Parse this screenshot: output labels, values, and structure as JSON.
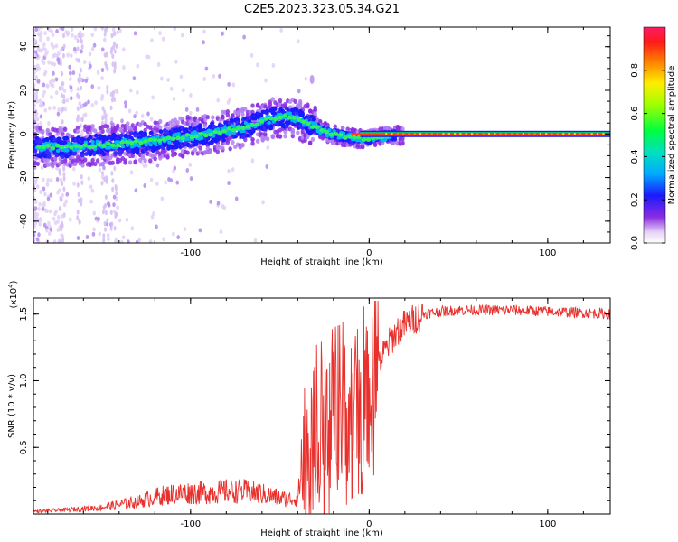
{
  "title": "C2E5.2023.323.05.34.G21",
  "chart_data": [
    {
      "type": "heatmap",
      "xlabel": "Height of straight line (km)",
      "ylabel": "Frequency (Hz)",
      "xlim": [
        -188,
        135
      ],
      "ylim": [
        -50,
        49
      ],
      "x_ticks": [
        -100,
        0,
        100
      ],
      "x_tick_labels": [
        "-100",
        "0",
        "100"
      ],
      "y_ticks": [
        -40,
        -20,
        0,
        20,
        40
      ],
      "y_tick_labels": [
        "-40",
        "-20",
        "0",
        "20",
        "40"
      ],
      "colorbar": {
        "label": "Normalized spectral amplitude",
        "range": [
          0,
          1
        ],
        "ticks": [
          0.0,
          0.2,
          0.4,
          0.6,
          0.8
        ],
        "tick_labels": [
          "0.0",
          "0.2",
          "0.4",
          "0.6",
          "0.8"
        ],
        "colormap": "rainbow (white-violet to red)"
      },
      "ridge": {
        "name": "",
        "x": [
          -185,
          -170,
          -150,
          -130,
          -110,
          -90,
          -70,
          -55,
          -45,
          -38,
          -30,
          -22,
          -15,
          -8,
          0,
          10,
          30,
          60,
          100,
          135
        ],
        "y": [
          -6,
          -6,
          -5,
          -4,
          -2,
          0,
          3,
          7,
          8,
          6,
          3,
          0,
          -1,
          -2,
          -2,
          -1,
          0,
          0,
          0,
          0
        ]
      }
    },
    {
      "type": "line",
      "xlabel": "Height of straight line (km)",
      "ylabel": "SNR (10 * v/v)",
      "y_multiplier": "(x10^4)",
      "xlim": [
        -188,
        135
      ],
      "ylim": [
        0,
        1.62
      ],
      "x_ticks": [
        -100,
        0,
        100
      ],
      "x_tick_labels": [
        "-100",
        "0",
        "100"
      ],
      "y_ticks": [
        0.5,
        1.0,
        1.5
      ],
      "y_tick_labels": [
        "0.5",
        "1.0",
        "1.5"
      ],
      "series": [
        {
          "name": "",
          "color": "#e8302c",
          "x": [
            -188,
            -170,
            -150,
            -130,
            -120,
            -110,
            -100,
            -90,
            -80,
            -70,
            -60,
            -50,
            -45,
            -40,
            -36,
            -32,
            -28,
            -24,
            -20,
            -16,
            -12,
            -8,
            -4,
            0,
            4,
            8,
            12,
            16,
            20,
            25,
            30,
            40,
            50,
            60,
            80,
            100,
            120,
            135
          ],
          "y": [
            0.02,
            0.03,
            0.05,
            0.09,
            0.13,
            0.15,
            0.16,
            0.16,
            0.17,
            0.17,
            0.15,
            0.12,
            0.11,
            0.12,
            0.5,
            0.55,
            0.58,
            0.62,
            0.7,
            0.72,
            0.78,
            0.85,
            0.85,
            0.88,
            1.05,
            1.2,
            1.3,
            1.38,
            1.42,
            1.46,
            1.5,
            1.52,
            1.53,
            1.53,
            1.53,
            1.52,
            1.51,
            1.5
          ]
        }
      ]
    }
  ]
}
